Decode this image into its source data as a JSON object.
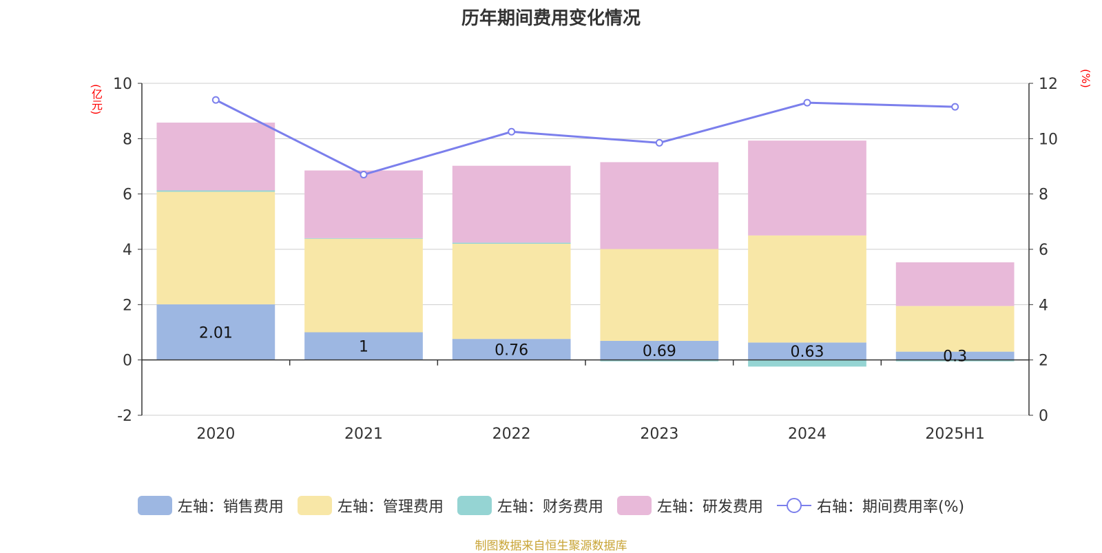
{
  "chart_data": {
    "type": "bar",
    "title": "历年期间费用变化情况",
    "left_unit": "(亿元)",
    "right_unit": "(%)",
    "categories": [
      "2020",
      "2021",
      "2022",
      "2023",
      "2024",
      "2025H1"
    ],
    "left_axis": {
      "min": -2,
      "max": 10,
      "ticks": [
        -2,
        0,
        2,
        4,
        6,
        8,
        10
      ]
    },
    "right_axis": {
      "min": 0,
      "max": 12,
      "ticks": [
        0,
        2,
        4,
        6,
        8,
        10,
        12
      ]
    },
    "grid": true,
    "legend_position": "bottom",
    "series": [
      {
        "name": "左轴：销售费用",
        "type": "bar",
        "axis": "left",
        "color": "#9db7e2",
        "values": [
          2.01,
          1.0,
          0.76,
          0.69,
          0.63,
          0.3
        ],
        "labels": [
          "2.01",
          "1",
          "0.76",
          "0.69",
          "0.63",
          "0.3"
        ]
      },
      {
        "name": "左轴：管理费用",
        "type": "bar",
        "axis": "left",
        "color": "#f8e7a7",
        "values": [
          4.07,
          3.38,
          3.44,
          3.32,
          3.87,
          1.65
        ]
      },
      {
        "name": "左轴：财务费用",
        "type": "bar",
        "axis": "left",
        "color": "#95d4d3",
        "values": [
          0.05,
          0.02,
          0.04,
          -0.05,
          -0.24,
          -0.05
        ]
      },
      {
        "name": "左轴：研发费用",
        "type": "bar",
        "axis": "left",
        "color": "#e8b9d9",
        "values": [
          2.45,
          2.45,
          2.78,
          3.14,
          3.43,
          1.58
        ]
      },
      {
        "name": "右轴：期间费用率(%)",
        "type": "line",
        "axis": "right",
        "color": "#7b7fec",
        "values": [
          11.4,
          8.7,
          10.25,
          9.85,
          11.3,
          11.15
        ]
      }
    ],
    "source": "制图数据来自恒生聚源数据库"
  }
}
